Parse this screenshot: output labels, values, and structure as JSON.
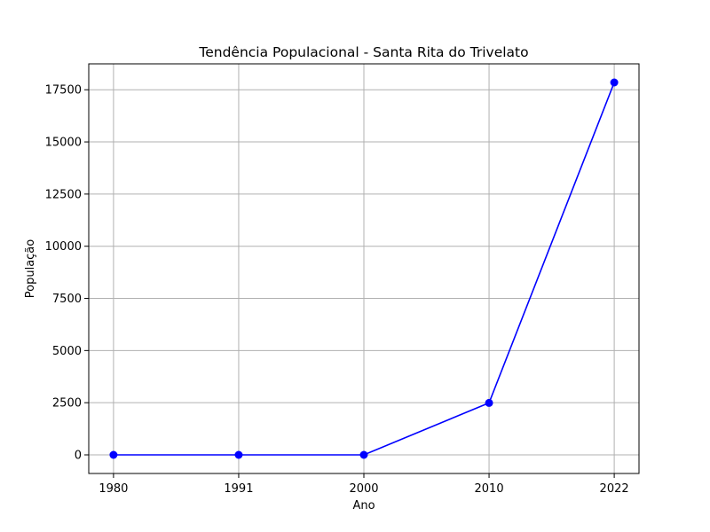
{
  "chart_data": {
    "type": "line",
    "title": "Tendência Populacional - Santa Rita do Trivelato",
    "xlabel": "Ano",
    "ylabel": "População",
    "categories": [
      "1980",
      "1991",
      "2000",
      "2010",
      "2022"
    ],
    "series": [
      {
        "name": "População",
        "values": [
          0,
          0,
          0,
          2491,
          17850
        ],
        "color": "#0000ff",
        "marker": "circle"
      }
    ],
    "yticks": [
      "0",
      "2500",
      "5000",
      "7500",
      "10000",
      "12500",
      "15000",
      "17500"
    ],
    "ylim": [
      -892.5,
      18742.5
    ],
    "grid": true
  }
}
